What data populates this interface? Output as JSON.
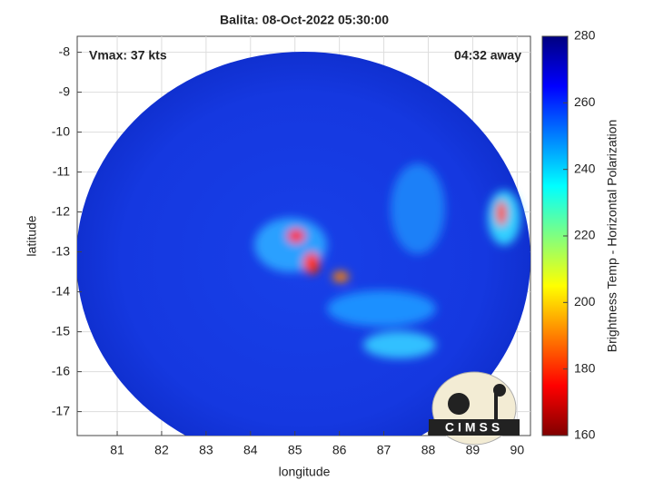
{
  "chart_data": {
    "type": "image",
    "title": "Balita: 08-Oct-2022 05:30:00",
    "annotations": [
      "Vmax: 37 kts",
      "04:32 away"
    ],
    "xlabel": "longitude",
    "ylabel": "latitude",
    "xlim": [
      80.1,
      90.3
    ],
    "xticks": [
      81,
      82,
      83,
      84,
      85,
      86,
      87,
      88,
      89,
      90
    ],
    "ylim": [
      -17.6,
      -7.6
    ],
    "yticks": [
      -17,
      -16,
      -15,
      -14,
      -13,
      -12,
      -11,
      -10,
      -9,
      -8
    ],
    "grid": true,
    "colorbar": {
      "label": "Brightness Temp - Horizontal Polarization",
      "lim": [
        160,
        280
      ],
      "ticks": [
        160,
        180,
        200,
        220,
        240,
        260,
        280
      ],
      "colormap": "jet"
    },
    "logo": "CIMSS"
  }
}
